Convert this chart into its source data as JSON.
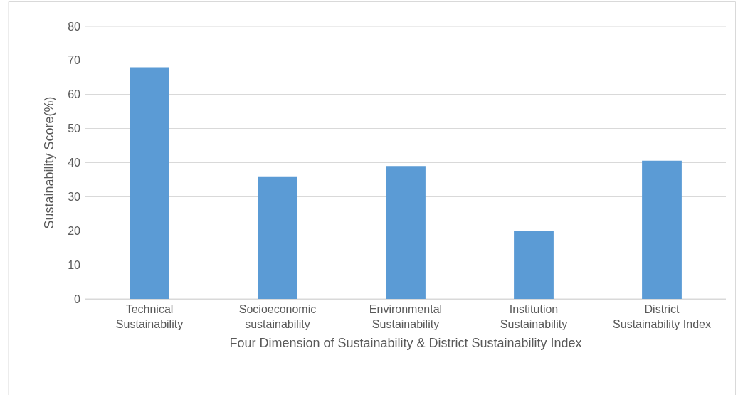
{
  "chart_data": {
    "type": "bar",
    "xlabel": "Four Dimension of Sustainability & District Sustainability Index",
    "ylabel": "Sustainability Score(%)",
    "categories": [
      "Technical Sustainability",
      "Socioeconomic sustainability",
      "Environmental Sustainability",
      "Institution Sustainability",
      "District Sustainability Index"
    ],
    "values": [
      68,
      36,
      39,
      20,
      40.6
    ],
    "color": "#5b9bd5",
    "ylim": [
      0,
      80
    ],
    "yticks": [
      0,
      10,
      20,
      30,
      40,
      50,
      60,
      70,
      80
    ],
    "grid": "y"
  }
}
